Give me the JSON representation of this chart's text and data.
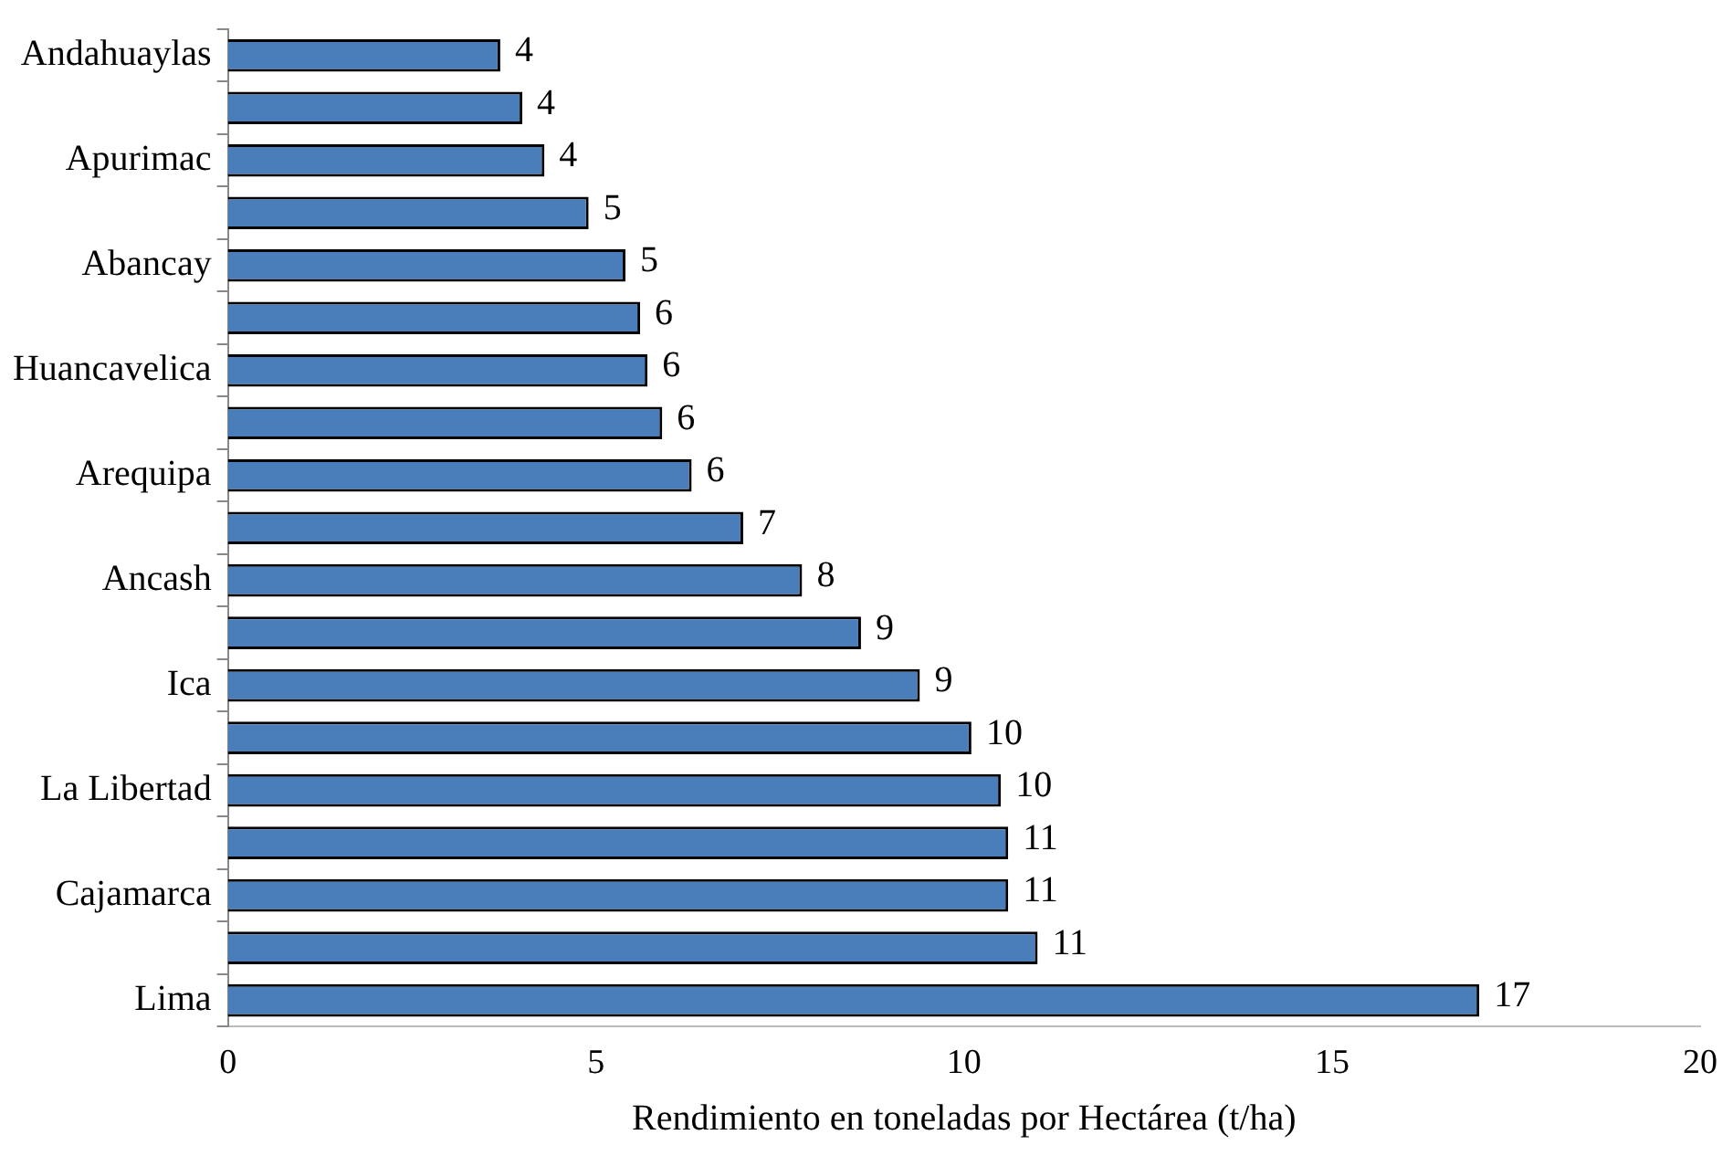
{
  "chart_data": {
    "type": "bar",
    "orientation": "horizontal",
    "xlabel": "Rendimiento en toneladas por Hectárea (t/ha)",
    "categories": [
      "Andahuaylas",
      null,
      "Apurimac",
      null,
      "Abancay",
      null,
      "Huancavelica",
      null,
      "Arequipa",
      null,
      "Ancash",
      null,
      "Ica",
      null,
      "La Libertad",
      null,
      "Cajamarca",
      null,
      "Lima"
    ],
    "values": [
      3.7,
      4.0,
      4.3,
      4.9,
      5.4,
      5.6,
      5.7,
      5.9,
      6.3,
      7.0,
      7.8,
      8.6,
      9.4,
      10.1,
      10.5,
      10.6,
      10.6,
      11.0,
      17.0
    ],
    "value_labels": [
      "4",
      "4",
      "4",
      "5",
      "5",
      "6",
      "6",
      "6",
      "6",
      "7",
      "8",
      "9",
      "9",
      "10",
      "10",
      "11",
      "11",
      "11",
      "17"
    ],
    "color": "#4a7ebb",
    "xlim": [
      0,
      20
    ],
    "xticks": [
      0,
      5,
      10,
      15,
      20
    ],
    "grid": false,
    "legend": false
  }
}
